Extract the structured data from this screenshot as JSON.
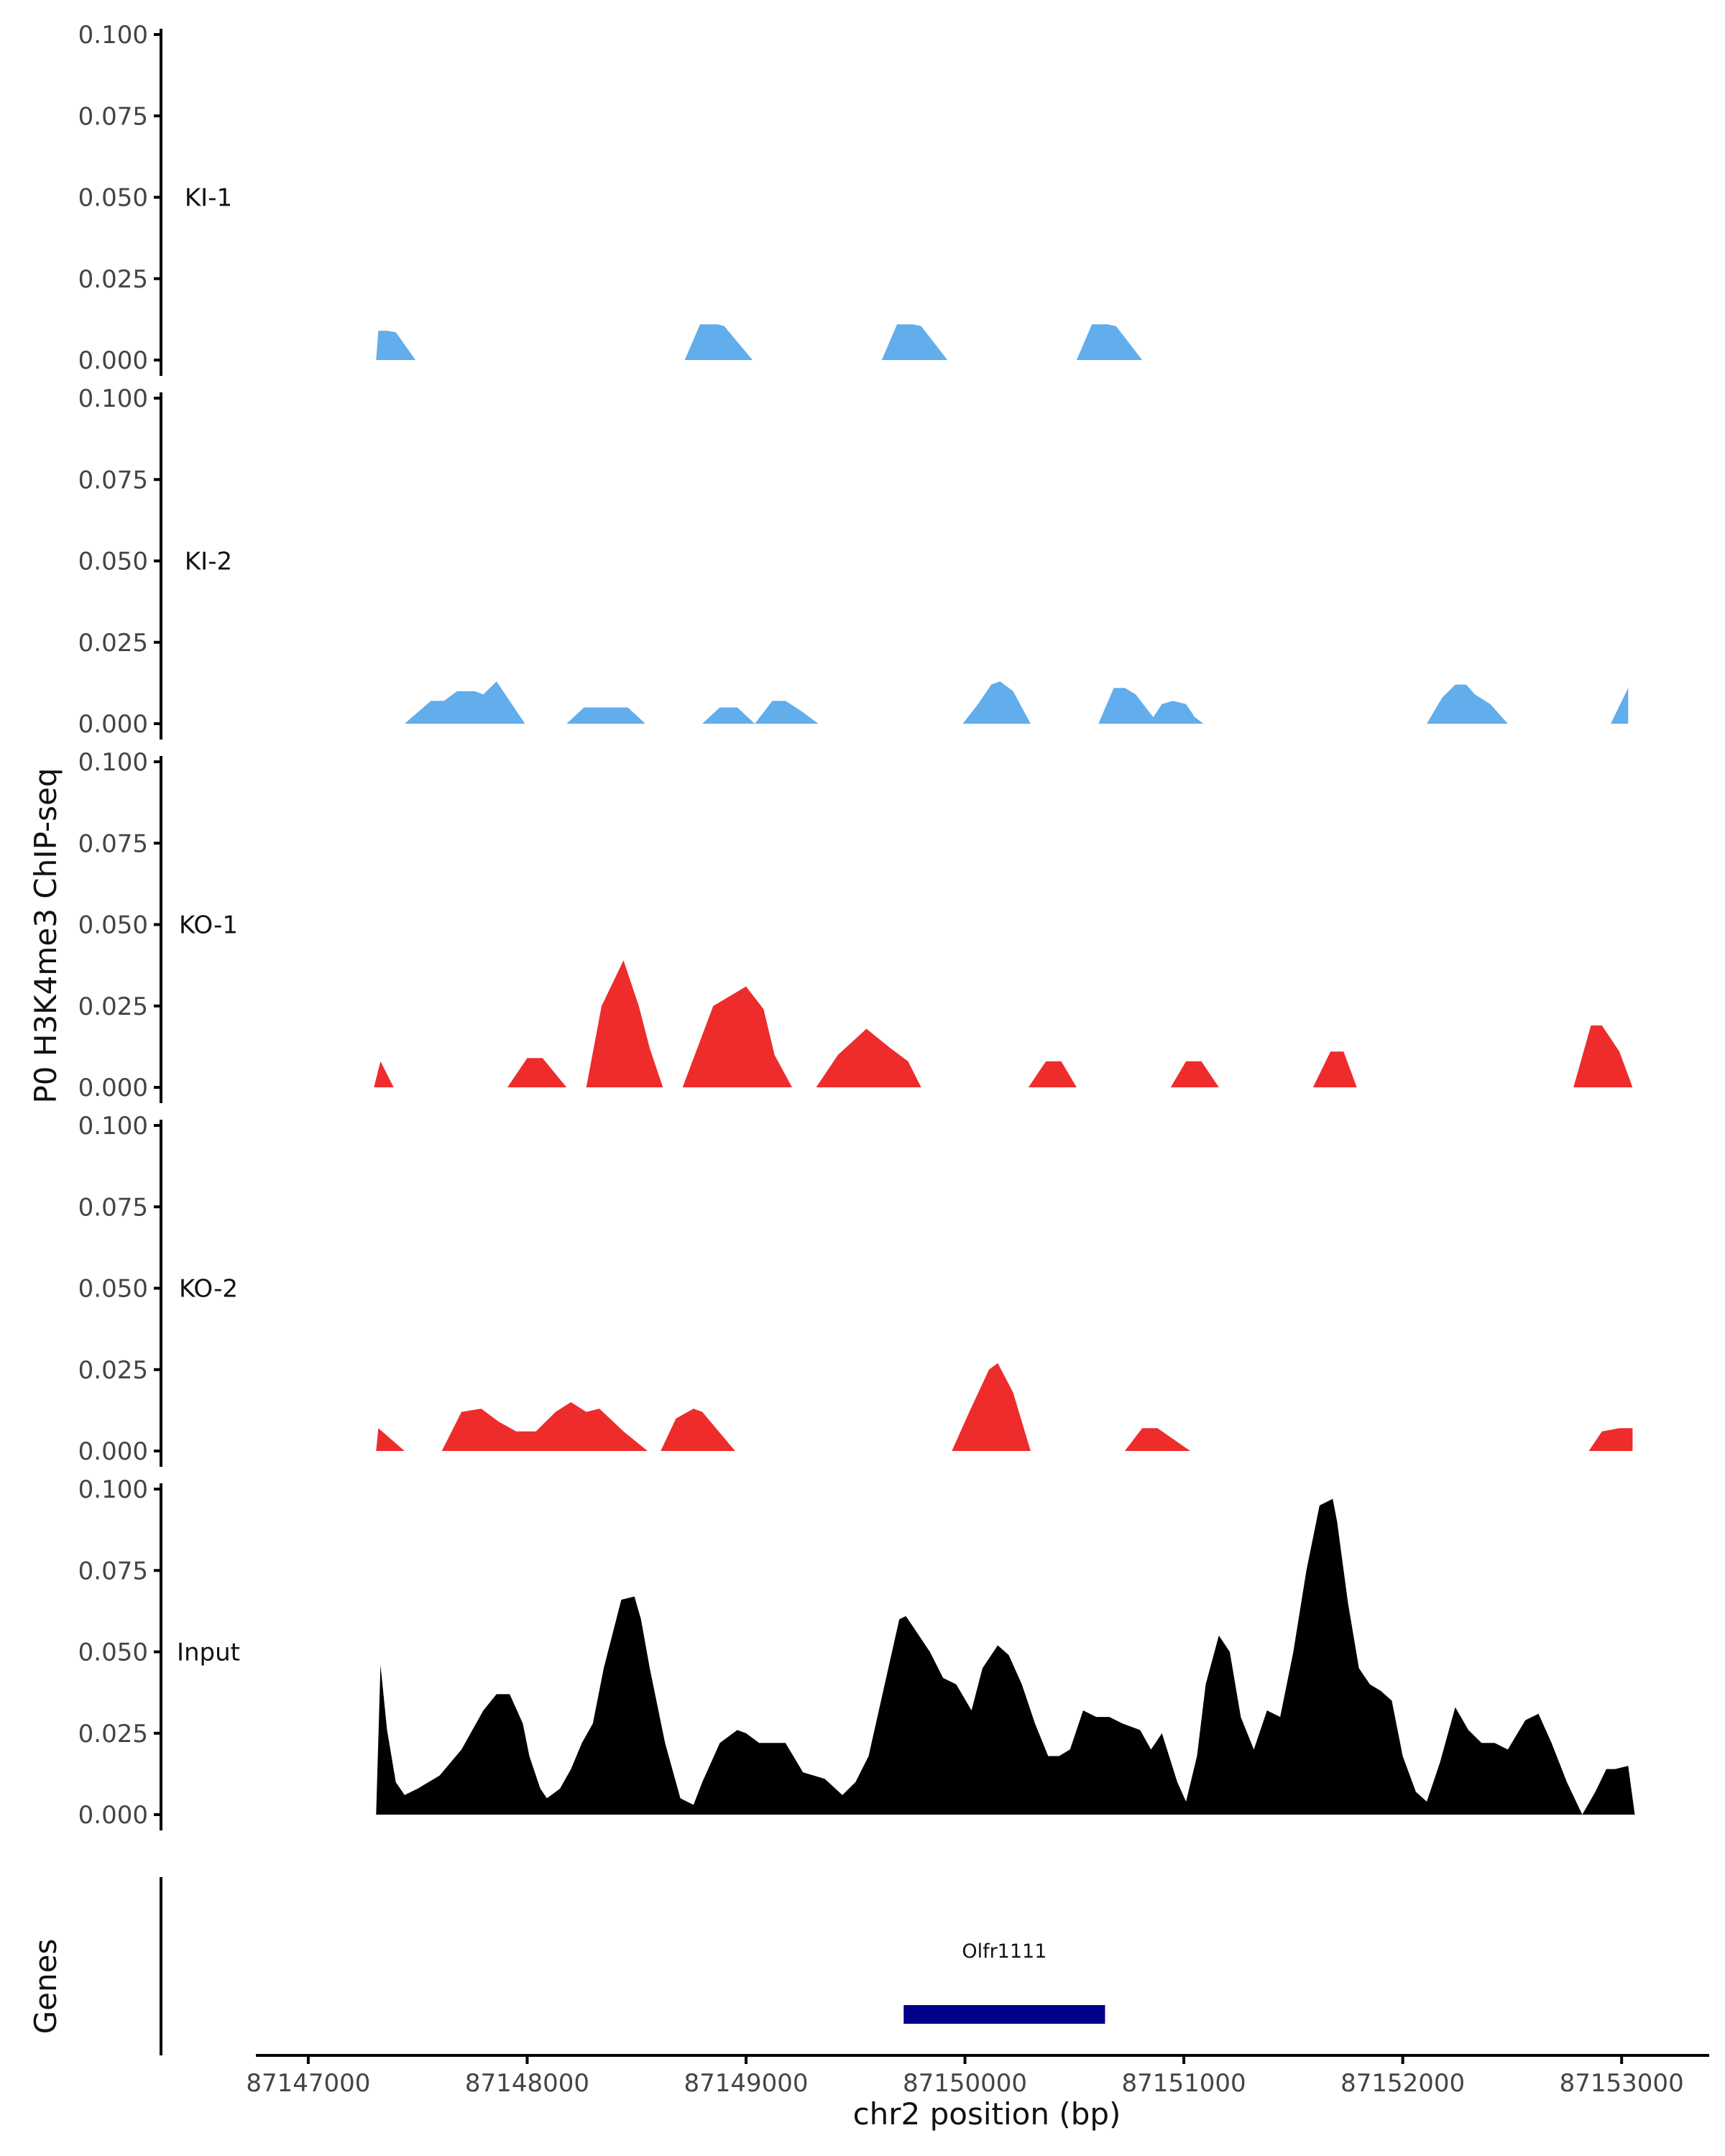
{
  "chart_data": {
    "type": "area",
    "ylabel": "P0 H3K4me3 ChIP-seq",
    "xlabel": "chr2 position (bp)",
    "xlim": [
      87146800,
      87153400
    ],
    "ylim": [
      0,
      0.1
    ],
    "y_ticks": [
      0.0,
      0.025,
      0.05,
      0.075,
      0.1
    ],
    "y_tick_labels": [
      "0.000",
      "0.025",
      "0.050",
      "0.075",
      "0.100"
    ],
    "x_ticks": [
      87147000,
      87148000,
      87149000,
      87150000,
      87151000,
      87152000,
      87153000
    ],
    "x_tick_labels": [
      "87147000",
      "87148000",
      "87149000",
      "87150000",
      "87151000",
      "87152000",
      "87153000"
    ],
    "colors": {
      "KI": "#62adeb",
      "KO": "#ee2c2c",
      "Input": "#000000",
      "gene": "#000088"
    },
    "tracks": [
      {
        "name": "KI-1",
        "color": "#62adeb",
        "peaks": [
          [
            87147310,
            87147320,
            87147360,
            87147400,
            87147490
          ],
          [
            87148720,
            87148790,
            87148870,
            87148900,
            87149030
          ],
          [
            87149620,
            87149690,
            87149760,
            87149800,
            87149920
          ],
          [
            87150510,
            87150580,
            87150650,
            87150690,
            87150810
          ]
        ],
        "peak_heights": [
          0.009,
          0.011,
          0.011,
          0.011
        ]
      },
      {
        "name": "KI-2",
        "color": "#62adeb",
        "x": [
          87147440,
          87147560,
          87147620,
          87147680,
          87147760,
          87147800,
          87147860,
          87147920,
          87147990,
          87148180,
          87148260,
          87148460,
          87148540,
          87148800,
          87148880,
          87148960,
          87149040,
          87149120,
          87149180,
          87149250,
          87149330,
          87149990,
          87150060,
          87150120,
          87150160,
          87150220,
          87150300,
          87150360,
          87150610,
          87150680,
          87150730,
          87150780,
          87150860,
          87150900,
          87150950,
          87151010,
          87151050,
          87151090,
          87151160,
          87152110,
          87152180,
          87152240,
          87152290,
          87152330,
          87152400,
          87152440,
          87152480,
          87152560,
          87152950,
          87153030
        ],
        "y": [
          0.0,
          0.007,
          0.007,
          0.01,
          0.01,
          0.009,
          0.013,
          0.007,
          0.0,
          0.0,
          0.005,
          0.005,
          0.0,
          0.0,
          0.005,
          0.005,
          0.0,
          0.007,
          0.007,
          0.004,
          0.0,
          0.0,
          0.006,
          0.012,
          0.013,
          0.01,
          0.0,
          0.0,
          0.0,
          0.011,
          0.011,
          0.009,
          0.002,
          0.006,
          0.007,
          0.006,
          0.002,
          0.0,
          0.0,
          0.0,
          0.008,
          0.012,
          0.012,
          0.009,
          0.006,
          0.003,
          0.0,
          0.0,
          0.0,
          0.011
        ],
        "peak_heights": [
          0.013,
          0.005,
          0.005,
          0.007,
          0.013,
          0.011,
          0.012,
          0.011
        ]
      },
      {
        "name": "KO-1",
        "color": "#ee2c2c",
        "x": [
          87147300,
          87147330,
          87147390,
          87147910,
          87148000,
          87148070,
          87148180,
          87148270,
          87148340,
          87148440,
          87148510,
          87148560,
          87148620,
          87148710,
          87148850,
          87149000,
          87149080,
          87149130,
          87149210,
          87149320,
          87149420,
          87149550,
          87149660,
          87149740,
          87149800,
          87149870,
          87149960,
          87150290,
          87150370,
          87150440,
          87150510,
          87150590,
          87150940,
          87151010,
          87151080,
          87151160,
          87151230,
          87151590,
          87151670,
          87151730,
          87151790,
          87151870,
          87152780,
          87152860,
          87152910,
          87152990,
          87153050
        ],
        "y": [
          0.0,
          0.008,
          0.0,
          0.0,
          0.009,
          0.009,
          0.0,
          0.0,
          0.025,
          0.039,
          0.025,
          0.012,
          0.0,
          0.0,
          0.025,
          0.031,
          0.024,
          0.01,
          0.0,
          0.0,
          0.01,
          0.018,
          0.012,
          0.008,
          0.0,
          0.0,
          0.0,
          0.0,
          0.008,
          0.008,
          0.0,
          0.0,
          0.0,
          0.008,
          0.008,
          0.0,
          0.0,
          0.0,
          0.011,
          0.011,
          0.0,
          0.0,
          0.0,
          0.019,
          0.019,
          0.011,
          0.0
        ],
        "peak_heights": [
          0.008,
          0.009,
          0.039,
          0.031,
          0.018,
          0.008,
          0.008,
          0.011,
          0.019
        ]
      },
      {
        "name": "KO-2",
        "color": "#ee2c2c",
        "x": [
          87147310,
          87147320,
          87147440,
          87147610,
          87147700,
          87147790,
          87147870,
          87147950,
          87148040,
          87148130,
          87148200,
          87148270,
          87148330,
          87148440,
          87148550,
          87148610,
          87148680,
          87148760,
          87148800,
          87148950,
          87149940,
          87150020,
          87150110,
          87150150,
          87150220,
          87150300,
          87150730,
          87150810,
          87150880,
          87151030,
          87152850,
          87152910,
          87152990,
          87153050
        ],
        "y": [
          0.0,
          0.007,
          0.0,
          0.0,
          0.012,
          0.013,
          0.009,
          0.006,
          0.006,
          0.012,
          0.015,
          0.012,
          0.013,
          0.006,
          0.0,
          0.0,
          0.01,
          0.013,
          0.012,
          0.0,
          0.0,
          0.012,
          0.025,
          0.027,
          0.018,
          0.0,
          0.0,
          0.007,
          0.007,
          0.0,
          0.0,
          0.006,
          0.007,
          0.007
        ],
        "peak_heights": [
          0.007,
          0.013,
          0.015,
          0.013,
          0.027,
          0.007,
          0.007
        ]
      },
      {
        "name": "Input",
        "color": "#000000",
        "x": [
          87147310,
          87147330,
          87147360,
          87147400,
          87147440,
          87147500,
          87147600,
          87147700,
          87147800,
          87147860,
          87147920,
          87147980,
          87148010,
          87148060,
          87148090,
          87148150,
          87148200,
          87148250,
          87148300,
          87148350,
          87148430,
          87148490,
          87148520,
          87148560,
          87148630,
          87148700,
          87148760,
          87148800,
          87148880,
          87148960,
          87149000,
          87149060,
          87149120,
          87149180,
          87149260,
          87149360,
          87149440,
          87149500,
          87149560,
          87149640,
          87149700,
          87149730,
          87149760,
          87149840,
          87149900,
          87149960,
          87150030,
          87150080,
          87150150,
          87150200,
          87150260,
          87150320,
          87150380,
          87150430,
          87150480,
          87150540,
          87150600,
          87150660,
          87150720,
          87150800,
          87150850,
          87150900,
          87150970,
          87151010,
          87151060,
          87151100,
          87151160,
          87151210,
          87151260,
          87151320,
          87151380,
          87151440,
          87151500,
          87151560,
          87151620,
          87151680,
          87151700,
          87151750,
          87151800,
          87151850,
          87151900,
          87151950,
          87152000,
          87152060,
          87152110,
          87152170,
          87152240,
          87152300,
          87152360,
          87152420,
          87152480,
          87152560,
          87152620,
          87152680,
          87152750,
          87152820,
          87152880,
          87152930,
          87152970,
          87153030,
          87153060
        ],
        "y": [
          0.0,
          0.046,
          0.026,
          0.01,
          0.006,
          0.008,
          0.012,
          0.02,
          0.032,
          0.037,
          0.037,
          0.028,
          0.018,
          0.008,
          0.005,
          0.008,
          0.014,
          0.022,
          0.028,
          0.045,
          0.066,
          0.067,
          0.06,
          0.045,
          0.022,
          0.005,
          0.003,
          0.01,
          0.022,
          0.026,
          0.025,
          0.022,
          0.022,
          0.022,
          0.013,
          0.011,
          0.006,
          0.01,
          0.018,
          0.042,
          0.06,
          0.061,
          0.058,
          0.05,
          0.042,
          0.04,
          0.032,
          0.045,
          0.052,
          0.049,
          0.04,
          0.028,
          0.018,
          0.018,
          0.02,
          0.032,
          0.03,
          0.03,
          0.028,
          0.026,
          0.02,
          0.025,
          0.01,
          0.004,
          0.018,
          0.04,
          0.055,
          0.05,
          0.03,
          0.02,
          0.032,
          0.03,
          0.05,
          0.075,
          0.095,
          0.097,
          0.09,
          0.065,
          0.045,
          0.04,
          0.038,
          0.035,
          0.018,
          0.007,
          0.004,
          0.016,
          0.033,
          0.026,
          0.022,
          0.022,
          0.02,
          0.029,
          0.031,
          0.022,
          0.01,
          0.0,
          0.007,
          0.014,
          0.014,
          0.015,
          0.0
        ],
        "peak_heights": [
          0.046,
          0.037,
          0.067,
          0.061,
          0.052,
          0.055,
          0.097,
          0.033,
          0.031
        ]
      }
    ],
    "genes_track": {
      "label": "Genes",
      "genes": [
        {
          "name": "Olfr1111",
          "start": 87149720,
          "end": 87150640,
          "strand": "-"
        }
      ]
    }
  }
}
